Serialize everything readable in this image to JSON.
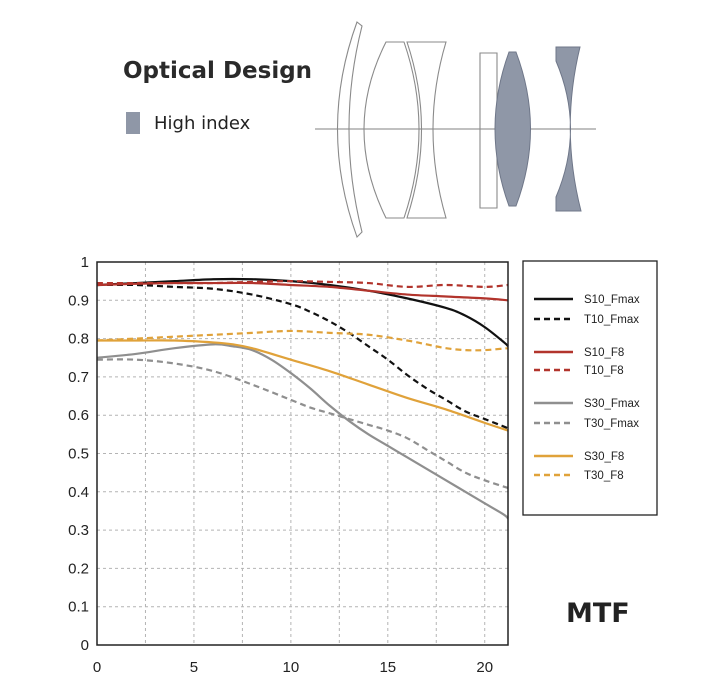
{
  "optical_design": {
    "title": "Optical Design",
    "legend_label": "High index",
    "legend_color": "#8f97a7"
  },
  "mtf_label": "MTF",
  "colors": {
    "black": "#111111",
    "red": "#b2342c",
    "gray": "#8f8f8f",
    "orange": "#e0a23a",
    "grid": "#b4b4b4"
  },
  "chart_data": {
    "type": "line",
    "title": "MTF",
    "xlim": [
      0,
      21.2
    ],
    "ylim": [
      0,
      1
    ],
    "x_ticks": [
      "0",
      "5",
      "10",
      "15",
      "20"
    ],
    "y_ticks": [
      "0",
      "0.1",
      "0.2",
      "0.3",
      "0.4",
      "0.5",
      "0.6",
      "0.7",
      "0.8",
      "0.9",
      "1"
    ],
    "grid": true,
    "legend_position": "right",
    "series": [
      {
        "name": "S10_Fmax",
        "color": "black",
        "dash": false,
        "x": [
          0,
          2,
          4,
          6,
          8,
          10,
          12,
          14,
          16,
          18,
          19,
          20,
          21,
          21.2
        ],
        "y": [
          0.94,
          0.945,
          0.95,
          0.955,
          0.955,
          0.95,
          0.94,
          0.925,
          0.905,
          0.88,
          0.86,
          0.83,
          0.79,
          0.78
        ]
      },
      {
        "name": "T10_Fmax",
        "color": "black",
        "dash": true,
        "x": [
          0,
          2,
          4,
          6,
          8,
          10,
          11,
          12,
          13,
          14,
          15,
          16,
          17,
          18,
          19,
          20,
          21,
          21.2
        ],
        "y": [
          0.94,
          0.94,
          0.935,
          0.93,
          0.915,
          0.89,
          0.87,
          0.845,
          0.815,
          0.78,
          0.745,
          0.705,
          0.67,
          0.64,
          0.61,
          0.59,
          0.57,
          0.565
        ]
      },
      {
        "name": "S10_F8",
        "color": "red",
        "dash": false,
        "x": [
          0,
          2,
          4,
          6,
          8,
          10,
          12,
          14,
          16,
          18,
          20,
          21.2
        ],
        "y": [
          0.94,
          0.943,
          0.945,
          0.945,
          0.945,
          0.94,
          0.935,
          0.925,
          0.915,
          0.91,
          0.905,
          0.9
        ]
      },
      {
        "name": "T10_F8",
        "color": "red",
        "dash": true,
        "x": [
          0,
          2,
          4,
          6,
          8,
          10,
          12,
          14,
          16,
          18,
          20,
          21.2
        ],
        "y": [
          0.945,
          0.945,
          0.945,
          0.945,
          0.948,
          0.95,
          0.948,
          0.945,
          0.935,
          0.94,
          0.935,
          0.94
        ]
      },
      {
        "name": "S30_Fmax",
        "color": "gray",
        "dash": false,
        "x": [
          0,
          2,
          4,
          6,
          7,
          8,
          9,
          10,
          11,
          12,
          13,
          14,
          15,
          16,
          17,
          18,
          19,
          20,
          21,
          21.2
        ],
        "y": [
          0.75,
          0.76,
          0.775,
          0.785,
          0.78,
          0.77,
          0.745,
          0.71,
          0.67,
          0.625,
          0.585,
          0.55,
          0.52,
          0.49,
          0.46,
          0.43,
          0.4,
          0.37,
          0.34,
          0.33
        ]
      },
      {
        "name": "T30_Fmax",
        "color": "gray",
        "dash": true,
        "x": [
          0,
          2,
          4,
          6,
          8,
          10,
          11,
          12,
          13,
          14,
          15,
          16,
          17,
          18,
          19,
          20,
          21.2
        ],
        "y": [
          0.745,
          0.745,
          0.735,
          0.715,
          0.68,
          0.64,
          0.62,
          0.605,
          0.59,
          0.575,
          0.56,
          0.54,
          0.51,
          0.48,
          0.45,
          0.43,
          0.41
        ]
      },
      {
        "name": "S30_F8",
        "color": "orange",
        "dash": false,
        "x": [
          0,
          2,
          4,
          6,
          7,
          8,
          10,
          12,
          14,
          16,
          18,
          20,
          21.2
        ],
        "y": [
          0.795,
          0.795,
          0.795,
          0.79,
          0.785,
          0.775,
          0.745,
          0.715,
          0.68,
          0.645,
          0.615,
          0.58,
          0.56
        ]
      },
      {
        "name": "T30_F8",
        "color": "orange",
        "dash": true,
        "x": [
          0,
          2,
          4,
          6,
          8,
          10,
          12,
          14,
          16,
          17,
          18,
          19,
          20,
          21.2
        ],
        "y": [
          0.795,
          0.8,
          0.805,
          0.81,
          0.815,
          0.82,
          0.815,
          0.81,
          0.795,
          0.785,
          0.775,
          0.77,
          0.77,
          0.775
        ]
      }
    ]
  }
}
